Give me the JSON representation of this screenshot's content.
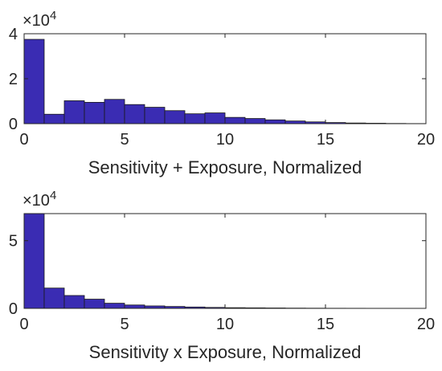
{
  "chart_data": [
    {
      "type": "bar",
      "name": "sum",
      "xlabel": "Sensitivity + Exposure, Normalized",
      "ylabel": "",
      "xlim": [
        0,
        20
      ],
      "ylim": [
        0,
        4
      ],
      "xticks": [
        0,
        5,
        10,
        15,
        20
      ],
      "yticks": [
        0,
        2,
        4
      ],
      "y_exponent_label": "×10",
      "y_exponent": "4",
      "bar_color": "#3a2cb3",
      "bin_width": 1,
      "bin_edges_start": [
        0,
        1,
        2,
        3,
        4,
        5,
        6,
        7,
        8,
        9,
        10,
        11,
        12,
        13,
        14,
        15,
        16,
        17,
        18,
        19
      ],
      "values": [
        3.75,
        0.42,
        1.02,
        0.95,
        1.08,
        0.85,
        0.73,
        0.58,
        0.44,
        0.48,
        0.28,
        0.23,
        0.17,
        0.12,
        0.08,
        0.05,
        0.03,
        0.02,
        0.01,
        0.005
      ]
    },
    {
      "type": "bar",
      "name": "product",
      "xlabel": "Sensitivity x Exposure, Normalized",
      "ylabel": "",
      "xlim": [
        0,
        20
      ],
      "ylim": [
        0,
        7
      ],
      "xticks": [
        0,
        5,
        10,
        15,
        20
      ],
      "yticks": [
        0,
        5
      ],
      "y_exponent_label": "×10",
      "y_exponent": "4",
      "bar_color": "#3a2cb3",
      "bin_width": 1,
      "bin_edges_start": [
        0,
        1,
        2,
        3,
        4,
        5,
        6,
        7,
        8,
        9,
        10,
        11,
        12,
        13,
        14,
        15,
        16,
        17,
        18,
        19
      ],
      "values": [
        7.0,
        1.5,
        0.95,
        0.68,
        0.38,
        0.25,
        0.18,
        0.14,
        0.1,
        0.07,
        0.05,
        0.04,
        0.03,
        0.02,
        0.015,
        0.01,
        0.008,
        0.005,
        0.003,
        0.002
      ]
    }
  ]
}
